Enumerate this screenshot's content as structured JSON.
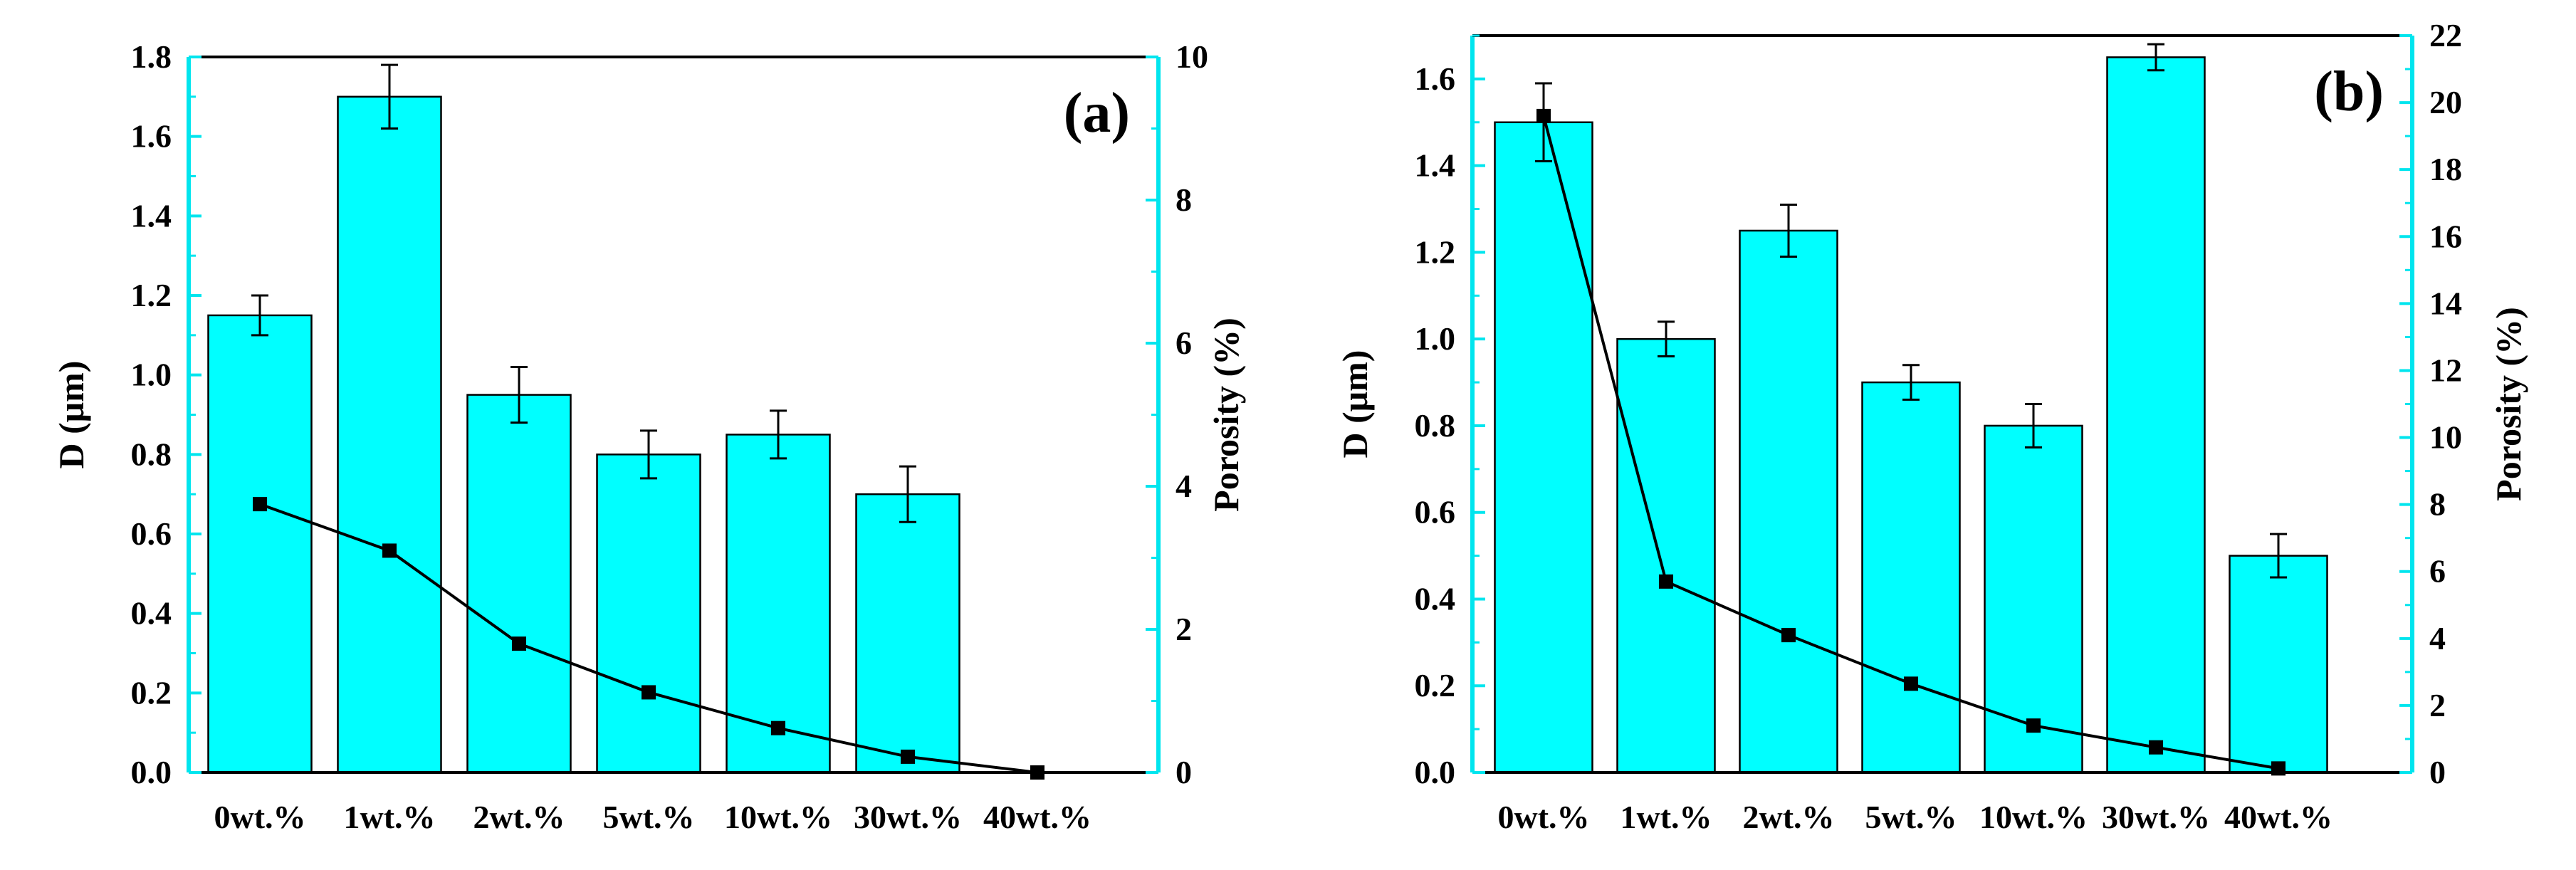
{
  "chart_data": [
    {
      "panel": "(a)",
      "type": "bar+line",
      "categories": [
        "0wt.%",
        "1wt.%",
        "2wt.%",
        "5wt.%",
        "10wt.%",
        "30wt.%",
        "40wt.%"
      ],
      "series": [
        {
          "name": "D",
          "kind": "bar",
          "axis": "left",
          "values": [
            1.15,
            1.7,
            0.95,
            0.8,
            0.85,
            0.7,
            null
          ],
          "errors": [
            0.05,
            0.08,
            0.07,
            0.06,
            0.06,
            0.07,
            null
          ]
        },
        {
          "name": "Porosity",
          "kind": "line",
          "axis": "right",
          "values": [
            3.75,
            3.1,
            1.8,
            1.12,
            0.62,
            0.22,
            0.0
          ]
        }
      ],
      "ylabel": "D (μm)",
      "y2label": "Porosity (%)",
      "ylim": [
        0,
        1.8
      ],
      "yticks": [
        "0.0",
        "0.2",
        "0.4",
        "0.6",
        "0.8",
        "1.0",
        "1.2",
        "1.4",
        "1.6",
        "1.8"
      ],
      "y2lim": [
        0,
        10
      ],
      "y2ticks": [
        "0",
        "2",
        "4",
        "6",
        "8",
        "10"
      ],
      "colors": {
        "bar": "#00ffff",
        "line": "#000000",
        "axis": "#00e5ee"
      }
    },
    {
      "panel": "(b)",
      "type": "bar+line",
      "categories": [
        "0wt.%",
        "1wt.%",
        "2wt.%",
        "5wt.%",
        "10wt.%",
        "30wt.%",
        "40wt.%"
      ],
      "series": [
        {
          "name": "D",
          "kind": "bar",
          "axis": "left",
          "values": [
            1.5,
            1.0,
            1.25,
            0.9,
            0.8,
            1.65,
            0.5
          ],
          "errors": [
            0.09,
            0.04,
            0.06,
            0.04,
            0.05,
            0.03,
            0.05
          ]
        },
        {
          "name": "Porosity",
          "kind": "line",
          "axis": "right",
          "values": [
            19.6,
            5.7,
            4.1,
            2.65,
            1.4,
            0.75,
            0.12
          ]
        }
      ],
      "ylabel": "D (μm)",
      "y2label": "Porosity (%)",
      "ylim": [
        0,
        1.7
      ],
      "yticks": [
        "0.0",
        "0.2",
        "0.4",
        "0.6",
        "0.8",
        "1.0",
        "1.2",
        "1.4",
        "1.6"
      ],
      "y2lim": [
        0,
        22
      ],
      "y2ticks": [
        "0",
        "2",
        "4",
        "6",
        "8",
        "10",
        "12",
        "14",
        "16",
        "18",
        "20",
        "22"
      ],
      "colors": {
        "bar": "#00ffff",
        "line": "#000000",
        "axis": "#00e5ee"
      }
    }
  ]
}
